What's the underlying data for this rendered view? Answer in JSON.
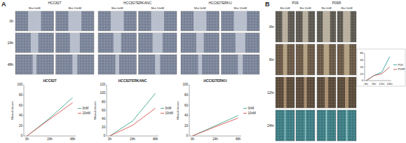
{
  "panels": [
    {
      "label": "A",
      "rows": [
        "0h",
        "24h",
        "48h"
      ],
      "groups": [
        {
          "title": "HCC827",
          "columns": [
            "Mut 0nM",
            "Mut 10nM"
          ]
        },
        {
          "title": "HCC827ERKANC",
          "columns": [
            "Mut 0nM",
            "Mut 10nM"
          ]
        },
        {
          "title": "HCC827ERKU",
          "columns": [
            "Mut 0nM",
            "Mut 10nM"
          ]
        }
      ]
    },
    {
      "label": "B",
      "rows": [
        "0hr",
        "6hr",
        "12hr",
        "24hr"
      ],
      "groups": [
        {
          "title": "P09",
          "columns": [
            "Mut 0nM",
            "Mut 10nM"
          ]
        },
        {
          "title": "P09R",
          "columns": [
            "Mut 0nM",
            "Mut 10nM"
          ]
        }
      ]
    }
  ],
  "chart_data": [
    {
      "type": "line",
      "title": "HCC827",
      "y_label": "Wound closure",
      "categories": [
        "0h",
        "24h",
        "48h"
      ],
      "ylim": [
        0,
        100
      ],
      "yticks": [
        0,
        20,
        40,
        60,
        80,
        100
      ],
      "grid": false,
      "legend": "right",
      "series": [
        {
          "name": "0nM",
          "color": "#3fa88f",
          "values": [
            0,
            35,
            75
          ]
        },
        {
          "name": "10nM",
          "color": "#d9534f",
          "values": [
            0,
            33,
            65
          ]
        }
      ]
    },
    {
      "type": "line",
      "title": "HCC827ERKANC",
      "y_label": "Wound closure",
      "categories": [
        "0h",
        "24h",
        "48h"
      ],
      "ylim": [
        0,
        120
      ],
      "yticks": [
        0,
        20,
        40,
        60,
        80,
        100,
        120
      ],
      "grid": false,
      "legend": "right",
      "series": [
        {
          "name": "0nM",
          "color": "#3fa88f",
          "values": [
            0,
            35,
            100
          ]
        },
        {
          "name": "10nM",
          "color": "#d9534f",
          "values": [
            0,
            25,
            65
          ]
        }
      ]
    },
    {
      "type": "line",
      "title": "HCC827ERKU",
      "y_label": "Wound closure",
      "categories": [
        "0h",
        "24h",
        "48h"
      ],
      "ylim": [
        0,
        100
      ],
      "yticks": [
        0,
        20,
        40,
        60,
        80,
        100
      ],
      "grid": false,
      "legend": "right",
      "series": [
        {
          "name": "0nM",
          "color": "#3fa88f",
          "values": [
            0,
            20,
            40
          ]
        },
        {
          "name": "10nM",
          "color": "#d9534f",
          "values": [
            0,
            18,
            35
          ]
        }
      ]
    },
    {
      "type": "line",
      "categories": [
        "0hr",
        "6hr",
        "12hr",
        "24hr"
      ],
      "ylim": [
        0,
        80
      ],
      "yticks": [
        0,
        20,
        40,
        60,
        80
      ],
      "grid": false,
      "legend": "right",
      "series": [
        {
          "name": "P09",
          "color": "#2fa0a0",
          "values": [
            0,
            15,
            25,
            70
          ]
        },
        {
          "name": "P09R",
          "color": "#c0504d",
          "values": [
            0,
            15,
            20,
            40
          ]
        }
      ]
    }
  ]
}
